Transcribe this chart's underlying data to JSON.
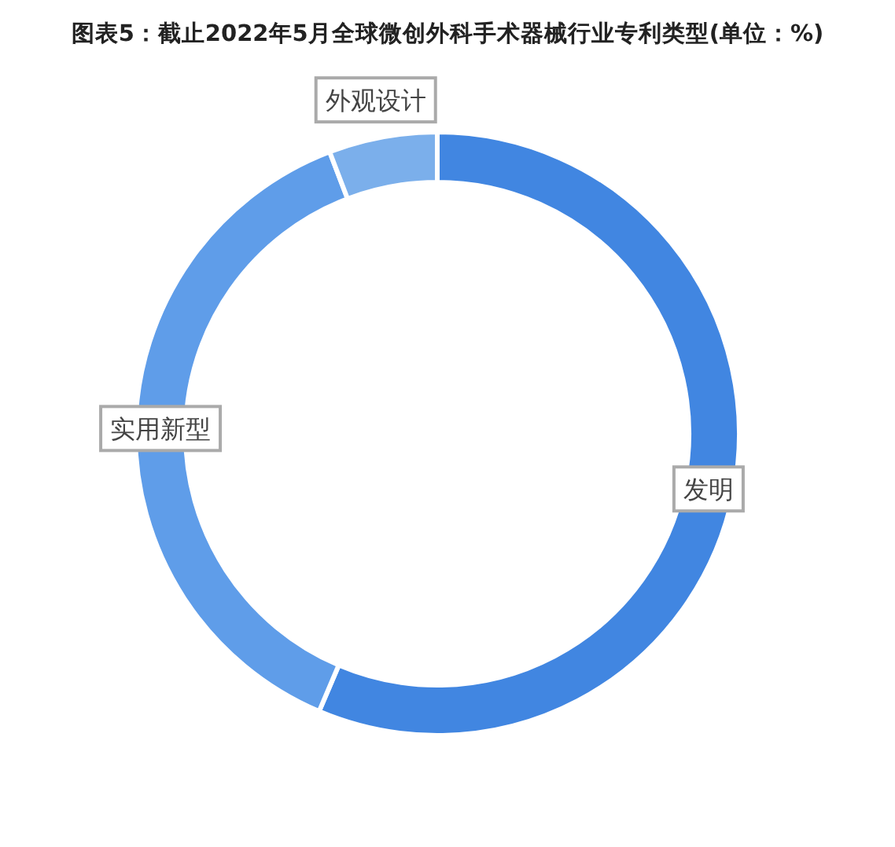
{
  "chart_data": {
    "type": "donut",
    "title": "图表5：截止2022年5月全球微创外科手术器械行业专利类型(单位：%)",
    "categories": [
      "发明",
      "实用新型",
      "外观设计"
    ],
    "values": [
      56.4,
      37.8,
      5.8
    ],
    "colors": [
      "#4186e1",
      "#5f9de9",
      "#7bafeb"
    ]
  }
}
